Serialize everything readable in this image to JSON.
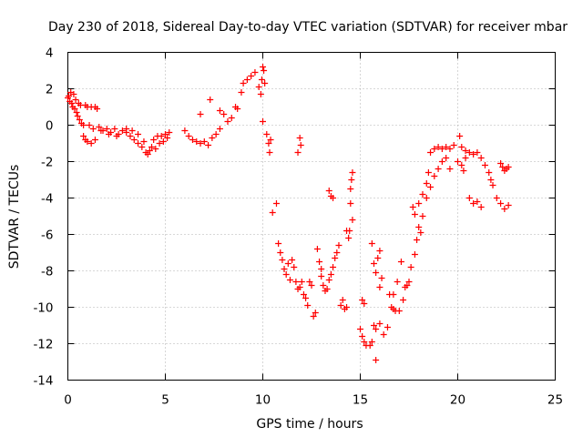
{
  "chart_data": {
    "type": "scatter",
    "title": "Day 230 of 2018, Sidereal Day-to-day VTEC variation (SDTVAR) for receiver mbar",
    "xlabel": "GPS time / hours",
    "ylabel": "SDTVAR / TECUs",
    "xlim": [
      0,
      25
    ],
    "ylim": [
      -14,
      4
    ],
    "xticks": [
      0,
      5,
      10,
      15,
      20,
      25
    ],
    "yticks": [
      -14,
      -12,
      -10,
      -8,
      -6,
      -4,
      -2,
      0,
      2,
      4
    ],
    "grid": true,
    "marker": "+",
    "color": "#ff0000",
    "points": [
      [
        0.0,
        1.5
      ],
      [
        0.05,
        1.6
      ],
      [
        0.1,
        1.3
      ],
      [
        0.15,
        1.8
      ],
      [
        0.2,
        1.2
      ],
      [
        0.25,
        1.0
      ],
      [
        0.3,
        1.7
      ],
      [
        0.35,
        0.9
      ],
      [
        0.4,
        1.4
      ],
      [
        0.45,
        0.7
      ],
      [
        0.5,
        0.5
      ],
      [
        0.55,
        1.2
      ],
      [
        0.6,
        0.3
      ],
      [
        0.65,
        1.1
      ],
      [
        0.7,
        0.1
      ],
      [
        0.8,
        0.0
      ],
      [
        0.9,
        1.1
      ],
      [
        1.0,
        1.0
      ],
      [
        1.1,
        0.0
      ],
      [
        1.2,
        1.0
      ],
      [
        1.3,
        -0.2
      ],
      [
        1.4,
        1.0
      ],
      [
        1.5,
        0.9
      ],
      [
        1.6,
        -0.1
      ],
      [
        1.7,
        -0.3
      ],
      [
        0.8,
        -0.6
      ],
      [
        0.9,
        -0.8
      ],
      [
        1.0,
        -0.9
      ],
      [
        1.2,
        -1.0
      ],
      [
        1.4,
        -0.8
      ],
      [
        1.8,
        -0.3
      ],
      [
        2.0,
        -0.2
      ],
      [
        2.2,
        -0.4
      ],
      [
        2.4,
        -0.2
      ],
      [
        2.6,
        -0.5
      ],
      [
        2.8,
        -0.3
      ],
      [
        3.0,
        -0.4
      ],
      [
        3.2,
        -0.6
      ],
      [
        3.4,
        -0.8
      ],
      [
        3.6,
        -1.0
      ],
      [
        3.8,
        -1.2
      ],
      [
        4.0,
        -1.5
      ],
      [
        4.1,
        -1.6
      ],
      [
        4.2,
        -1.4
      ],
      [
        4.3,
        -1.2
      ],
      [
        4.5,
        -1.3
      ],
      [
        4.7,
        -1.0
      ],
      [
        4.8,
        -0.6
      ],
      [
        5.0,
        -0.5
      ],
      [
        5.2,
        -0.4
      ],
      [
        3.0,
        -0.2
      ],
      [
        3.3,
        -0.3
      ],
      [
        3.6,
        -0.5
      ],
      [
        3.9,
        -0.9
      ],
      [
        4.4,
        -0.8
      ],
      [
        4.6,
        -0.6
      ],
      [
        4.9,
        -0.9
      ],
      [
        5.1,
        -0.7
      ],
      [
        2.5,
        -0.6
      ],
      [
        2.1,
        -0.5
      ],
      [
        6.0,
        -0.3
      ],
      [
        6.2,
        -0.6
      ],
      [
        6.4,
        -0.8
      ],
      [
        6.6,
        -0.9
      ],
      [
        6.8,
        -1.0
      ],
      [
        7.0,
        -0.9
      ],
      [
        7.2,
        -1.1
      ],
      [
        7.4,
        -0.7
      ],
      [
        7.6,
        -0.5
      ],
      [
        7.8,
        -0.2
      ],
      [
        6.8,
        0.6
      ],
      [
        7.3,
        1.4
      ],
      [
        7.8,
        0.8
      ],
      [
        8.0,
        0.6
      ],
      [
        8.2,
        0.2
      ],
      [
        8.4,
        0.4
      ],
      [
        8.6,
        1.0
      ],
      [
        8.7,
        0.9
      ],
      [
        8.9,
        1.8
      ],
      [
        9.0,
        2.3
      ],
      [
        9.2,
        2.5
      ],
      [
        9.4,
        2.7
      ],
      [
        9.6,
        2.9
      ],
      [
        9.8,
        2.1
      ],
      [
        9.9,
        1.7
      ],
      [
        10.0,
        3.2
      ],
      [
        10.05,
        3.0
      ],
      [
        9.95,
        2.5
      ],
      [
        10.1,
        2.3
      ],
      [
        10.0,
        0.2
      ],
      [
        10.2,
        -0.5
      ],
      [
        10.3,
        -1.0
      ],
      [
        10.35,
        -1.5
      ],
      [
        10.4,
        -0.8
      ],
      [
        10.5,
        -4.8
      ],
      [
        10.7,
        -4.3
      ],
      [
        10.8,
        -6.5
      ],
      [
        10.9,
        -7.0
      ],
      [
        11.0,
        -7.4
      ],
      [
        11.1,
        -7.9
      ],
      [
        11.2,
        -8.2
      ],
      [
        11.4,
        -8.5
      ],
      [
        11.5,
        -7.4
      ],
      [
        11.6,
        -7.8
      ],
      [
        11.7,
        -8.6
      ],
      [
        11.8,
        -9.0
      ],
      [
        11.9,
        -8.9
      ],
      [
        12.0,
        -8.6
      ],
      [
        12.1,
        -9.3
      ],
      [
        12.2,
        -9.5
      ],
      [
        11.9,
        -0.7
      ],
      [
        11.95,
        -1.1
      ],
      [
        11.8,
        -1.5
      ],
      [
        12.4,
        -8.6
      ],
      [
        12.6,
        -10.5
      ],
      [
        12.7,
        -10.3
      ],
      [
        12.8,
        -6.8
      ],
      [
        12.9,
        -7.5
      ],
      [
        13.0,
        -8.3
      ],
      [
        13.1,
        -8.8
      ],
      [
        13.2,
        -9.1
      ],
      [
        13.3,
        -9.0
      ],
      [
        13.4,
        -8.5
      ],
      [
        13.5,
        -8.2
      ],
      [
        13.6,
        -7.8
      ],
      [
        13.7,
        -7.3
      ],
      [
        13.8,
        -7.0
      ],
      [
        13.9,
        -6.6
      ],
      [
        14.0,
        -9.9
      ],
      [
        14.2,
        -10.1
      ],
      [
        14.3,
        -10.0
      ],
      [
        13.4,
        -3.6
      ],
      [
        13.5,
        -3.9
      ],
      [
        13.6,
        -4.0
      ],
      [
        14.3,
        -5.8
      ],
      [
        14.5,
        -3.5
      ],
      [
        14.55,
        -3.0
      ],
      [
        14.6,
        -2.6
      ],
      [
        14.5,
        -4.3
      ],
      [
        14.6,
        -5.2
      ],
      [
        14.45,
        -5.8
      ],
      [
        14.4,
        -6.2
      ],
      [
        15.0,
        -11.2
      ],
      [
        15.1,
        -11.6
      ],
      [
        15.2,
        -11.9
      ],
      [
        15.3,
        -12.1
      ],
      [
        15.5,
        -12.1
      ],
      [
        15.6,
        -11.9
      ],
      [
        15.1,
        -9.6
      ],
      [
        15.2,
        -9.8
      ],
      [
        15.6,
        -6.5
      ],
      [
        15.7,
        -7.6
      ],
      [
        15.8,
        -8.1
      ],
      [
        15.9,
        -7.3
      ],
      [
        16.0,
        -6.9
      ],
      [
        16.0,
        -8.9
      ],
      [
        15.7,
        -11.0
      ],
      [
        15.8,
        -11.2
      ],
      [
        16.0,
        -10.9
      ],
      [
        16.2,
        -11.5
      ],
      [
        16.4,
        -11.1
      ],
      [
        15.8,
        -12.9
      ],
      [
        16.5,
        -9.3
      ],
      [
        16.6,
        -10.0
      ],
      [
        16.7,
        -10.1
      ],
      [
        16.8,
        -10.2
      ],
      [
        17.0,
        -10.2
      ],
      [
        17.2,
        -9.6
      ],
      [
        17.4,
        -8.8
      ],
      [
        17.5,
        -8.6
      ],
      [
        17.6,
        -7.8
      ],
      [
        17.8,
        -7.1
      ],
      [
        17.9,
        -6.3
      ],
      [
        18.0,
        -5.6
      ],
      [
        18.2,
        -5.0
      ],
      [
        18.4,
        -4.0
      ],
      [
        18.6,
        -3.4
      ],
      [
        18.8,
        -2.8
      ],
      [
        19.0,
        -2.4
      ],
      [
        19.2,
        -2.0
      ],
      [
        17.7,
        -4.5
      ],
      [
        17.8,
        -4.9
      ],
      [
        18.0,
        -4.3
      ],
      [
        18.2,
        -3.8
      ],
      [
        18.4,
        -3.2
      ],
      [
        18.5,
        -2.6
      ],
      [
        18.6,
        -1.5
      ],
      [
        18.8,
        -1.3
      ],
      [
        19.0,
        -1.2
      ],
      [
        19.2,
        -1.3
      ],
      [
        19.4,
        -1.2
      ],
      [
        19.6,
        -1.3
      ],
      [
        19.8,
        -1.1
      ],
      [
        20.0,
        -2.0
      ],
      [
        20.2,
        -2.2
      ],
      [
        20.4,
        -1.8
      ],
      [
        20.6,
        -1.5
      ],
      [
        20.8,
        -1.6
      ],
      [
        21.0,
        -1.5
      ],
      [
        21.2,
        -1.8
      ],
      [
        21.4,
        -2.2
      ],
      [
        21.6,
        -2.6
      ],
      [
        21.8,
        -3.3
      ],
      [
        22.0,
        -4.0
      ],
      [
        22.2,
        -4.3
      ],
      [
        22.4,
        -4.6
      ],
      [
        22.6,
        -4.4
      ],
      [
        20.6,
        -4.0
      ],
      [
        20.8,
        -4.3
      ],
      [
        21.0,
        -4.2
      ],
      [
        21.2,
        -4.5
      ],
      [
        22.2,
        -2.1
      ],
      [
        22.3,
        -2.3
      ],
      [
        22.5,
        -2.4
      ],
      [
        22.6,
        -2.3
      ],
      [
        22.4,
        -2.5
      ],
      [
        20.1,
        -0.6
      ],
      [
        20.2,
        -1.2
      ],
      [
        20.4,
        -1.4
      ],
      [
        16.9,
        -8.6
      ],
      [
        17.1,
        -7.5
      ],
      [
        16.7,
        -9.3
      ],
      [
        12.3,
        -9.9
      ],
      [
        13.0,
        -7.9
      ],
      [
        11.3,
        -7.6
      ],
      [
        14.1,
        -9.6
      ],
      [
        17.3,
        -8.9
      ],
      [
        19.6,
        -2.4
      ],
      [
        20.3,
        -2.5
      ],
      [
        21.7,
        -3.0
      ],
      [
        19.4,
        -1.8
      ],
      [
        18.1,
        -5.9
      ],
      [
        16.1,
        -8.4
      ],
      [
        12.5,
        -8.8
      ]
    ]
  }
}
